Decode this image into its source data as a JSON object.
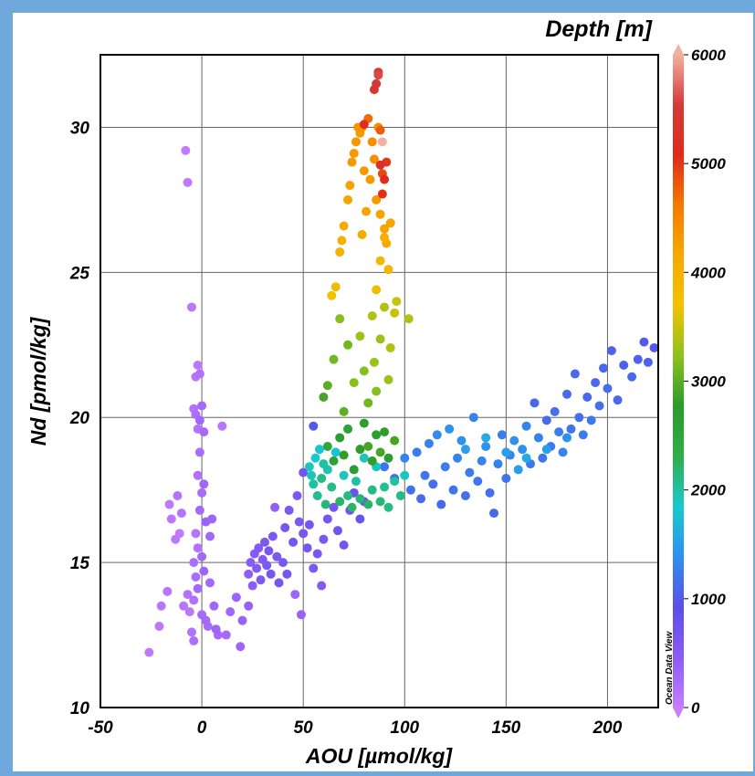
{
  "chart_data": {
    "type": "scatter",
    "xlabel": "AOU [µmol/kg]",
    "ylabel": "Nd [pmol/kg]",
    "xlim": [
      -50,
      225
    ],
    "ylim": [
      10,
      32.5
    ],
    "xticks": [
      "-50",
      "0",
      "50",
      "100",
      "150",
      "200"
    ],
    "yticks": [
      "10",
      "15",
      "20",
      "25",
      "30"
    ],
    "grid": true,
    "colorbar": {
      "label": "Depth [m]",
      "ticks": [
        "0",
        "1000",
        "2000",
        "3000",
        "4000",
        "5000",
        "6000"
      ],
      "range": [
        0,
        6000
      ],
      "colors": [
        "#c77dff",
        "#8a5cf6",
        "#5a50e6",
        "#2f8ff0",
        "#19c9cf",
        "#2fae4a",
        "#2b9a2b",
        "#8cc21d",
        "#f2c200",
        "#f7a800",
        "#f57a00",
        "#e02a1a",
        "#d43a3a",
        "#f3b0a0"
      ]
    },
    "watermark": "Ocean Data View",
    "points": [
      [
        -26,
        11.9,
        50
      ],
      [
        -21,
        12.8,
        80
      ],
      [
        -20,
        13.5,
        100
      ],
      [
        -17,
        14.0,
        120
      ],
      [
        -16,
        17.0,
        60
      ],
      [
        -15,
        16.5,
        90
      ],
      [
        -13,
        15.8,
        70
      ],
      [
        -12,
        17.3,
        150
      ],
      [
        -11,
        16.0,
        40
      ],
      [
        -10,
        16.7,
        130
      ],
      [
        -8,
        29.2,
        30
      ],
      [
        -7,
        28.1,
        60
      ],
      [
        -9,
        13.5,
        110
      ],
      [
        -7,
        13.9,
        150
      ],
      [
        -6,
        13.3,
        90
      ],
      [
        -5,
        12.6,
        160
      ],
      [
        -4,
        12.3,
        200
      ],
      [
        -5,
        23.8,
        100
      ],
      [
        -4,
        20.3,
        150
      ],
      [
        -3,
        21.4,
        120
      ],
      [
        -2,
        21.8,
        90
      ],
      [
        -1,
        21.5,
        170
      ],
      [
        -3,
        20.1,
        200
      ],
      [
        -2,
        19.6,
        140
      ],
      [
        -1,
        18.8,
        220
      ],
      [
        -2,
        18.0,
        180
      ],
      [
        0,
        17.4,
        240
      ],
      [
        -1,
        16.8,
        260
      ],
      [
        -3,
        16.0,
        120
      ],
      [
        -2,
        15.5,
        160
      ],
      [
        -4,
        15.0,
        200
      ],
      [
        -3,
        14.5,
        220
      ],
      [
        -2,
        14.1,
        260
      ],
      [
        -4,
        13.7,
        180
      ],
      [
        0,
        13.2,
        250
      ],
      [
        -1,
        19.9,
        300
      ],
      [
        0,
        20.4,
        280
      ],
      [
        1,
        19.5,
        260
      ],
      [
        1,
        17.7,
        310
      ],
      [
        2,
        16.4,
        330
      ],
      [
        0,
        15.2,
        290
      ],
      [
        1,
        14.7,
        310
      ],
      [
        2,
        13.0,
        270
      ],
      [
        3,
        12.8,
        240
      ],
      [
        4,
        15.9,
        300
      ],
      [
        5,
        16.5,
        320
      ],
      [
        4,
        14.3,
        280
      ],
      [
        6,
        13.5,
        300
      ],
      [
        7,
        12.7,
        320
      ],
      [
        10,
        19.7,
        120
      ],
      [
        8,
        12.5,
        250
      ],
      [
        12,
        12.5,
        260
      ],
      [
        14,
        13.3,
        300
      ],
      [
        19,
        12.1,
        320
      ],
      [
        17,
        13.8,
        340
      ],
      [
        20,
        13.0,
        360
      ],
      [
        23,
        13.5,
        380
      ],
      [
        23,
        14.6,
        420
      ],
      [
        24,
        15.0,
        460
      ],
      [
        25,
        14.2,
        440
      ],
      [
        26,
        15.3,
        500
      ],
      [
        27,
        14.8,
        520
      ],
      [
        28,
        15.5,
        540
      ],
      [
        29,
        14.4,
        560
      ],
      [
        30,
        15.1,
        580
      ],
      [
        31,
        15.7,
        600
      ],
      [
        32,
        14.9,
        620
      ],
      [
        33,
        15.4,
        640
      ],
      [
        34,
        14.6,
        660
      ],
      [
        35,
        15.9,
        620
      ],
      [
        36,
        16.9,
        400
      ],
      [
        37,
        15.2,
        600
      ],
      [
        38,
        14.3,
        660
      ],
      [
        40,
        15.0,
        640
      ],
      [
        41,
        16.2,
        650
      ],
      [
        42,
        14.6,
        660
      ],
      [
        43,
        16.8,
        620
      ],
      [
        45,
        15.7,
        640
      ],
      [
        46,
        13.9,
        340
      ],
      [
        48,
        16.4,
        600
      ],
      [
        47,
        17.3,
        620
      ],
      [
        50,
        16.0,
        640
      ],
      [
        50,
        18.1,
        680
      ],
      [
        49,
        13.2,
        360
      ],
      [
        52,
        15.5,
        640
      ],
      [
        53,
        16.3,
        660
      ],
      [
        55,
        14.8,
        620
      ],
      [
        57,
        15.3,
        640
      ],
      [
        59,
        14.2,
        500
      ],
      [
        60,
        15.8,
        620
      ],
      [
        62,
        16.5,
        640
      ],
      [
        65,
        16.9,
        660
      ],
      [
        67,
        16.1,
        700
      ],
      [
        70,
        15.6,
        680
      ],
      [
        73,
        16.8,
        720
      ],
      [
        75,
        17.4,
        760
      ],
      [
        78,
        16.5,
        780
      ],
      [
        80,
        17.1,
        800
      ],
      [
        55,
        19.7,
        1000
      ],
      [
        53,
        18.3,
        1900
      ],
      [
        54,
        18.0,
        1950
      ],
      [
        55,
        17.7,
        2000
      ],
      [
        56,
        18.6,
        1850
      ],
      [
        57,
        17.3,
        2050
      ],
      [
        58,
        18.9,
        1800
      ],
      [
        59,
        17.9,
        2100
      ],
      [
        60,
        18.4,
        2000
      ],
      [
        61,
        17.0,
        2150
      ],
      [
        62,
        18.2,
        1950
      ],
      [
        64,
        17.6,
        2100
      ],
      [
        66,
        18.8,
        1800
      ],
      [
        68,
        17.1,
        2200
      ],
      [
        70,
        18.0,
        1900
      ],
      [
        72,
        17.3,
        2100
      ],
      [
        74,
        16.9,
        2200
      ],
      [
        76,
        17.8,
        2000
      ],
      [
        78,
        17.2,
        2150
      ],
      [
        80,
        18.6,
        1900
      ],
      [
        82,
        17.0,
        2200
      ],
      [
        84,
        17.5,
        2100
      ],
      [
        86,
        18.3,
        1900
      ],
      [
        88,
        17.1,
        2150
      ],
      [
        90,
        17.6,
        2050
      ],
      [
        92,
        16.9,
        2100
      ],
      [
        95,
        17.8,
        2000
      ],
      [
        98,
        17.3,
        2100
      ],
      [
        100,
        18.0,
        1900
      ],
      [
        62,
        19.0,
        2500
      ],
      [
        65,
        18.5,
        2600
      ],
      [
        68,
        19.3,
        2700
      ],
      [
        70,
        18.7,
        2800
      ],
      [
        72,
        19.6,
        2600
      ],
      [
        75,
        18.2,
        2700
      ],
      [
        78,
        18.9,
        2800
      ],
      [
        80,
        19.8,
        2700
      ],
      [
        82,
        19.0,
        2900
      ],
      [
        84,
        18.5,
        2800
      ],
      [
        86,
        19.4,
        2700
      ],
      [
        88,
        18.8,
        2900
      ],
      [
        90,
        19.5,
        2800
      ],
      [
        92,
        18.6,
        2700
      ],
      [
        95,
        19.2,
        2900
      ],
      [
        60,
        20.7,
        2900
      ],
      [
        62,
        21.1,
        3000
      ],
      [
        65,
        22.0,
        3100
      ],
      [
        68,
        23.4,
        3200
      ],
      [
        70,
        20.2,
        3000
      ],
      [
        72,
        22.5,
        3100
      ],
      [
        75,
        21.2,
        3200
      ],
      [
        78,
        22.8,
        3300
      ],
      [
        80,
        21.6,
        3200
      ],
      [
        82,
        20.5,
        3100
      ],
      [
        84,
        23.5,
        3400
      ],
      [
        85,
        21.9,
        3300
      ],
      [
        86,
        20.9,
        3200
      ],
      [
        88,
        22.7,
        3300
      ],
      [
        90,
        23.8,
        3400
      ],
      [
        92,
        21.3,
        3300
      ],
      [
        93,
        22.4,
        3400
      ],
      [
        95,
        23.6,
        3500
      ],
      [
        96,
        24.0,
        3500
      ],
      [
        102,
        23.4,
        3400
      ],
      [
        64,
        24.2,
        3700
      ],
      [
        66,
        24.5,
        3800
      ],
      [
        86,
        24.4,
        3800
      ],
      [
        88,
        25.4,
        3900
      ],
      [
        90,
        26.2,
        4000
      ],
      [
        92,
        25.1,
        3900
      ],
      [
        68,
        25.7,
        4000
      ],
      [
        69,
        26.1,
        4050
      ],
      [
        70,
        26.6,
        4100
      ],
      [
        72,
        27.5,
        4200
      ],
      [
        73,
        28.0,
        4200
      ],
      [
        74,
        28.8,
        4300
      ],
      [
        75,
        29.1,
        4300
      ],
      [
        76,
        29.5,
        4300
      ],
      [
        77,
        30.0,
        4350
      ],
      [
        78,
        29.8,
        4300
      ],
      [
        79,
        30.0,
        4350
      ],
      [
        79,
        26.3,
        4100
      ],
      [
        80,
        28.5,
        4300
      ],
      [
        81,
        27.1,
        4200
      ],
      [
        83,
        28.2,
        4300
      ],
      [
        84,
        29.5,
        4400
      ],
      [
        85,
        28.9,
        4400
      ],
      [
        86,
        27.5,
        4300
      ],
      [
        88,
        27.0,
        4200
      ],
      [
        90,
        26.5,
        4200
      ],
      [
        91,
        26.0,
        4100
      ],
      [
        93,
        26.7,
        4200
      ],
      [
        87,
        30.0,
        4400
      ],
      [
        82,
        30.3,
        4700
      ],
      [
        88,
        29.9,
        4800
      ],
      [
        89,
        28.4,
        4900
      ],
      [
        90,
        28.2,
        5100
      ],
      [
        91,
        28.8,
        5000
      ],
      [
        89,
        27.7,
        5050
      ],
      [
        80,
        30.1,
        5200
      ],
      [
        85,
        31.3,
        5400
      ],
      [
        86,
        31.5,
        5500
      ],
      [
        87,
        31.8,
        5600
      ],
      [
        87,
        31.9,
        5500
      ],
      [
        89,
        29.5,
        6000
      ],
      [
        88,
        28.7,
        5300
      ],
      [
        90,
        18.3,
        1200
      ],
      [
        95,
        17.9,
        1100
      ],
      [
        100,
        18.6,
        1300
      ],
      [
        103,
        17.5,
        1150
      ],
      [
        106,
        18.8,
        1250
      ],
      [
        108,
        17.2,
        1100
      ],
      [
        110,
        18.0,
        1200
      ],
      [
        112,
        19.1,
        1300
      ],
      [
        114,
        17.7,
        1150
      ],
      [
        116,
        19.4,
        1350
      ],
      [
        118,
        17.0,
        1100
      ],
      [
        120,
        18.3,
        1250
      ],
      [
        122,
        19.6,
        1400
      ],
      [
        124,
        17.5,
        1200
      ],
      [
        126,
        18.6,
        1300
      ],
      [
        128,
        19.2,
        1400
      ],
      [
        130,
        17.3,
        1150
      ],
      [
        132,
        18.1,
        1250
      ],
      [
        134,
        20.0,
        1300
      ],
      [
        136,
        17.8,
        1200
      ],
      [
        138,
        18.5,
        1300
      ],
      [
        140,
        19.0,
        1400
      ],
      [
        142,
        17.4,
        1150
      ],
      [
        144,
        16.7,
        1100
      ],
      [
        146,
        18.4,
        1300
      ],
      [
        148,
        19.4,
        1250
      ],
      [
        150,
        17.9,
        1200
      ],
      [
        152,
        18.7,
        1300
      ],
      [
        154,
        19.2,
        1400
      ],
      [
        156,
        18.2,
        1500
      ],
      [
        158,
        18.9,
        1400
      ],
      [
        160,
        19.7,
        1300
      ],
      [
        162,
        18.4,
        1200
      ],
      [
        164,
        20.5,
        1100
      ],
      [
        166,
        19.3,
        1300
      ],
      [
        168,
        18.6,
        1200
      ],
      [
        170,
        19.9,
        1100
      ],
      [
        172,
        19.0,
        1200
      ],
      [
        174,
        20.2,
        1150
      ],
      [
        176,
        19.5,
        1250
      ],
      [
        178,
        18.8,
        1300
      ],
      [
        180,
        20.8,
        1100
      ],
      [
        182,
        19.6,
        1200
      ],
      [
        184,
        21.5,
        1100
      ],
      [
        186,
        20.0,
        1150
      ],
      [
        188,
        19.4,
        1250
      ],
      [
        190,
        20.7,
        1100
      ],
      [
        192,
        19.9,
        1200
      ],
      [
        194,
        21.2,
        1100
      ],
      [
        196,
        20.4,
        1150
      ],
      [
        198,
        21.7,
        1100
      ],
      [
        200,
        21.0,
        1150
      ],
      [
        202,
        22.3,
        1050
      ],
      [
        205,
        20.6,
        1100
      ],
      [
        208,
        21.8,
        1050
      ],
      [
        212,
        21.4,
        1100
      ],
      [
        215,
        22.0,
        1050
      ],
      [
        218,
        22.6,
        1000
      ],
      [
        220,
        21.9,
        1050
      ],
      [
        223,
        22.4,
        1000
      ],
      [
        130,
        18.9,
        1500
      ],
      [
        140,
        19.3,
        1600
      ],
      [
        150,
        18.8,
        1500
      ],
      [
        160,
        18.6,
        1600
      ],
      [
        170,
        18.9,
        1500
      ],
      [
        180,
        19.3,
        1400
      ]
    ]
  }
}
